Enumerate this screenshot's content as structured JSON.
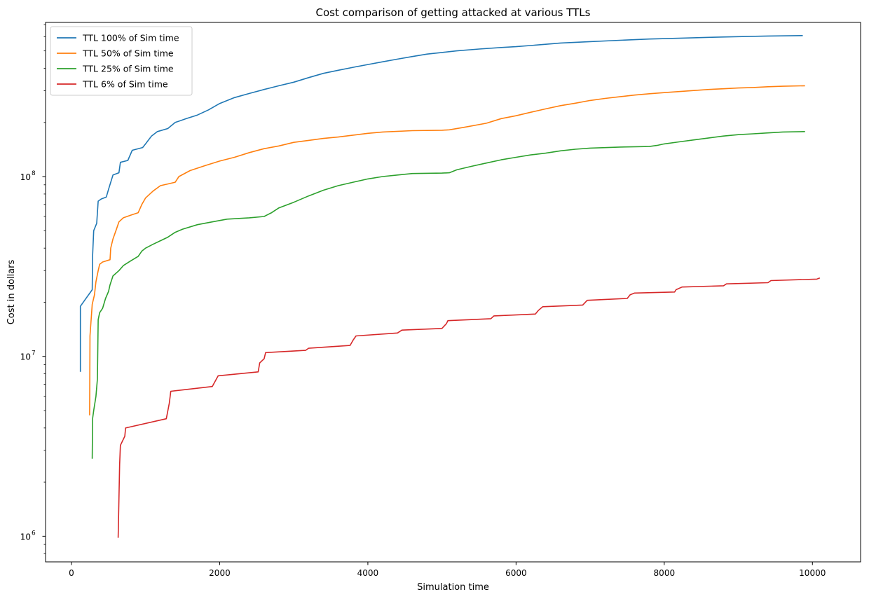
{
  "chart_data": {
    "type": "line",
    "title": "Cost comparison of getting attacked at various TTLs",
    "xlabel": "Simulation time",
    "ylabel": "Cost in dollars",
    "xlim": [
      -350,
      10650
    ],
    "ylim": [
      720000,
      720000000
    ],
    "yscale": "log",
    "x_ticks": [
      0,
      2000,
      4000,
      6000,
      8000,
      10000
    ],
    "y_ticks": [
      {
        "value": 1000000,
        "base": "10",
        "exp": "6"
      },
      {
        "value": 10000000,
        "base": "10",
        "exp": "7"
      },
      {
        "value": 100000000,
        "base": "10",
        "exp": "8"
      }
    ],
    "legend_position": "upper-left",
    "grid": false,
    "series": [
      {
        "name": "TTL 100% of Sim time",
        "color": "#1f77b4",
        "points": [
          [
            120,
            8200000
          ],
          [
            120,
            19000000
          ],
          [
            280,
            23500000
          ],
          [
            285,
            36000000
          ],
          [
            300,
            50000000
          ],
          [
            340,
            55000000
          ],
          [
            360,
            73000000
          ],
          [
            400,
            75000000
          ],
          [
            470,
            77000000
          ],
          [
            500,
            85000000
          ],
          [
            560,
            102000000
          ],
          [
            640,
            105000000
          ],
          [
            660,
            120000000
          ],
          [
            760,
            123000000
          ],
          [
            820,
            140000000
          ],
          [
            960,
            145000000
          ],
          [
            1000,
            152000000
          ],
          [
            1080,
            168000000
          ],
          [
            1160,
            178000000
          ],
          [
            1300,
            185000000
          ],
          [
            1400,
            200000000
          ],
          [
            1550,
            210000000
          ],
          [
            1700,
            220000000
          ],
          [
            1850,
            235000000
          ],
          [
            2000,
            255000000
          ],
          [
            2200,
            275000000
          ],
          [
            2400,
            290000000
          ],
          [
            2600,
            305000000
          ],
          [
            2800,
            320000000
          ],
          [
            3000,
            335000000
          ],
          [
            3200,
            355000000
          ],
          [
            3400,
            375000000
          ],
          [
            3600,
            390000000
          ],
          [
            3800,
            405000000
          ],
          [
            4000,
            420000000
          ],
          [
            4200,
            435000000
          ],
          [
            4400,
            450000000
          ],
          [
            4600,
            465000000
          ],
          [
            4800,
            480000000
          ],
          [
            5000,
            490000000
          ],
          [
            5200,
            500000000
          ],
          [
            5500,
            512000000
          ],
          [
            5800,
            522000000
          ],
          [
            6000,
            528000000
          ],
          [
            6300,
            540000000
          ],
          [
            6600,
            553000000
          ],
          [
            7000,
            563000000
          ],
          [
            7400,
            573000000
          ],
          [
            7800,
            582000000
          ],
          [
            8200,
            588000000
          ],
          [
            8600,
            595000000
          ],
          [
            9000,
            600000000
          ],
          [
            9400,
            605000000
          ],
          [
            9870,
            608000000
          ]
        ]
      },
      {
        "name": "TTL 50% of Sim time",
        "color": "#ff7f0e",
        "points": [
          [
            245,
            4700000
          ],
          [
            250,
            13000000
          ],
          [
            280,
            19500000
          ],
          [
            310,
            22000000
          ],
          [
            330,
            26000000
          ],
          [
            360,
            30000000
          ],
          [
            380,
            32500000
          ],
          [
            420,
            33500000
          ],
          [
            520,
            34500000
          ],
          [
            530,
            40000000
          ],
          [
            560,
            45000000
          ],
          [
            600,
            50000000
          ],
          [
            640,
            56000000
          ],
          [
            700,
            59000000
          ],
          [
            800,
            61000000
          ],
          [
            900,
            63000000
          ],
          [
            950,
            70000000
          ],
          [
            1000,
            76000000
          ],
          [
            1100,
            83000000
          ],
          [
            1200,
            89000000
          ],
          [
            1300,
            91000000
          ],
          [
            1400,
            93000000
          ],
          [
            1450,
            100000000
          ],
          [
            1600,
            108000000
          ],
          [
            1800,
            115000000
          ],
          [
            2000,
            122000000
          ],
          [
            2200,
            128000000
          ],
          [
            2400,
            136000000
          ],
          [
            2600,
            143000000
          ],
          [
            2800,
            148000000
          ],
          [
            3000,
            155000000
          ],
          [
            3200,
            159000000
          ],
          [
            3400,
            163000000
          ],
          [
            3600,
            166000000
          ],
          [
            3800,
            170000000
          ],
          [
            4000,
            174000000
          ],
          [
            4200,
            177000000
          ],
          [
            4600,
            180000000
          ],
          [
            5000,
            181000000
          ],
          [
            5100,
            182000000
          ],
          [
            5300,
            188000000
          ],
          [
            5600,
            198000000
          ],
          [
            5800,
            210000000
          ],
          [
            6000,
            218000000
          ],
          [
            6200,
            228000000
          ],
          [
            6400,
            238000000
          ],
          [
            6600,
            248000000
          ],
          [
            6800,
            256000000
          ],
          [
            7000,
            265000000
          ],
          [
            7200,
            272000000
          ],
          [
            7400,
            278000000
          ],
          [
            7600,
            284000000
          ],
          [
            7800,
            289000000
          ],
          [
            8000,
            293000000
          ],
          [
            8200,
            297000000
          ],
          [
            8400,
            301000000
          ],
          [
            8600,
            305000000
          ],
          [
            8800,
            308000000
          ],
          [
            9000,
            311000000
          ],
          [
            9200,
            313000000
          ],
          [
            9400,
            316000000
          ],
          [
            9600,
            318000000
          ],
          [
            9900,
            320000000
          ]
        ]
      },
      {
        "name": "TTL 25% of Sim time",
        "color": "#2ca02c",
        "points": [
          [
            280,
            2700000
          ],
          [
            285,
            4500000
          ],
          [
            300,
            5000000
          ],
          [
            330,
            6000000
          ],
          [
            350,
            7500000
          ],
          [
            360,
            16000000
          ],
          [
            380,
            17500000
          ],
          [
            420,
            18500000
          ],
          [
            460,
            21000000
          ],
          [
            500,
            23000000
          ],
          [
            520,
            25000000
          ],
          [
            560,
            28000000
          ],
          [
            640,
            30000000
          ],
          [
            700,
            32000000
          ],
          [
            800,
            34000000
          ],
          [
            900,
            36000000
          ],
          [
            950,
            38500000
          ],
          [
            1000,
            40000000
          ],
          [
            1100,
            42000000
          ],
          [
            1200,
            44000000
          ],
          [
            1300,
            46000000
          ],
          [
            1400,
            49000000
          ],
          [
            1500,
            51000000
          ],
          [
            1700,
            54000000
          ],
          [
            1900,
            56000000
          ],
          [
            2100,
            58000000
          ],
          [
            2400,
            59000000
          ],
          [
            2600,
            60000000
          ],
          [
            2700,
            63000000
          ],
          [
            2800,
            67000000
          ],
          [
            3000,
            72000000
          ],
          [
            3200,
            78000000
          ],
          [
            3400,
            84000000
          ],
          [
            3600,
            89000000
          ],
          [
            3800,
            93000000
          ],
          [
            4000,
            97000000
          ],
          [
            4200,
            100000000
          ],
          [
            4400,
            102000000
          ],
          [
            4600,
            104000000
          ],
          [
            5000,
            104500000
          ],
          [
            5100,
            105000000
          ],
          [
            5200,
            109000000
          ],
          [
            5400,
            114000000
          ],
          [
            5600,
            119000000
          ],
          [
            5800,
            124000000
          ],
          [
            6000,
            128000000
          ],
          [
            6200,
            132000000
          ],
          [
            6400,
            135000000
          ],
          [
            6600,
            139000000
          ],
          [
            6800,
            142000000
          ],
          [
            7000,
            144000000
          ],
          [
            7400,
            146000000
          ],
          [
            7800,
            147000000
          ],
          [
            7900,
            149000000
          ],
          [
            8000,
            152000000
          ],
          [
            8200,
            156000000
          ],
          [
            8400,
            160000000
          ],
          [
            8600,
            164000000
          ],
          [
            8800,
            168000000
          ],
          [
            9000,
            171000000
          ],
          [
            9200,
            173000000
          ],
          [
            9400,
            175000000
          ],
          [
            9600,
            177000000
          ],
          [
            9900,
            178000000
          ]
        ]
      },
      {
        "name": "TTL 6% of Sim time",
        "color": "#d62728",
        "points": [
          [
            630,
            980000
          ],
          [
            640,
            1600000
          ],
          [
            650,
            2500000
          ],
          [
            660,
            3200000
          ],
          [
            720,
            3600000
          ],
          [
            730,
            4000000
          ],
          [
            1280,
            4500000
          ],
          [
            1320,
            5500000
          ],
          [
            1340,
            6400000
          ],
          [
            1900,
            6800000
          ],
          [
            1980,
            7800000
          ],
          [
            2520,
            8200000
          ],
          [
            2540,
            9200000
          ],
          [
            2600,
            9700000
          ],
          [
            2620,
            10500000
          ],
          [
            3160,
            10800000
          ],
          [
            3200,
            11100000
          ],
          [
            3760,
            11500000
          ],
          [
            3800,
            12300000
          ],
          [
            3840,
            13000000
          ],
          [
            4400,
            13500000
          ],
          [
            4460,
            14000000
          ],
          [
            5000,
            14300000
          ],
          [
            5060,
            15200000
          ],
          [
            5080,
            15800000
          ],
          [
            5660,
            16200000
          ],
          [
            5700,
            16800000
          ],
          [
            6260,
            17200000
          ],
          [
            6300,
            18000000
          ],
          [
            6360,
            18900000
          ],
          [
            6900,
            19300000
          ],
          [
            6960,
            20500000
          ],
          [
            7500,
            21000000
          ],
          [
            7540,
            22000000
          ],
          [
            7600,
            22500000
          ],
          [
            8140,
            22800000
          ],
          [
            8160,
            23500000
          ],
          [
            8240,
            24300000
          ],
          [
            8800,
            24700000
          ],
          [
            8840,
            25300000
          ],
          [
            9400,
            25700000
          ],
          [
            9440,
            26400000
          ],
          [
            10060,
            26900000
          ],
          [
            10100,
            27300000
          ]
        ]
      }
    ]
  }
}
